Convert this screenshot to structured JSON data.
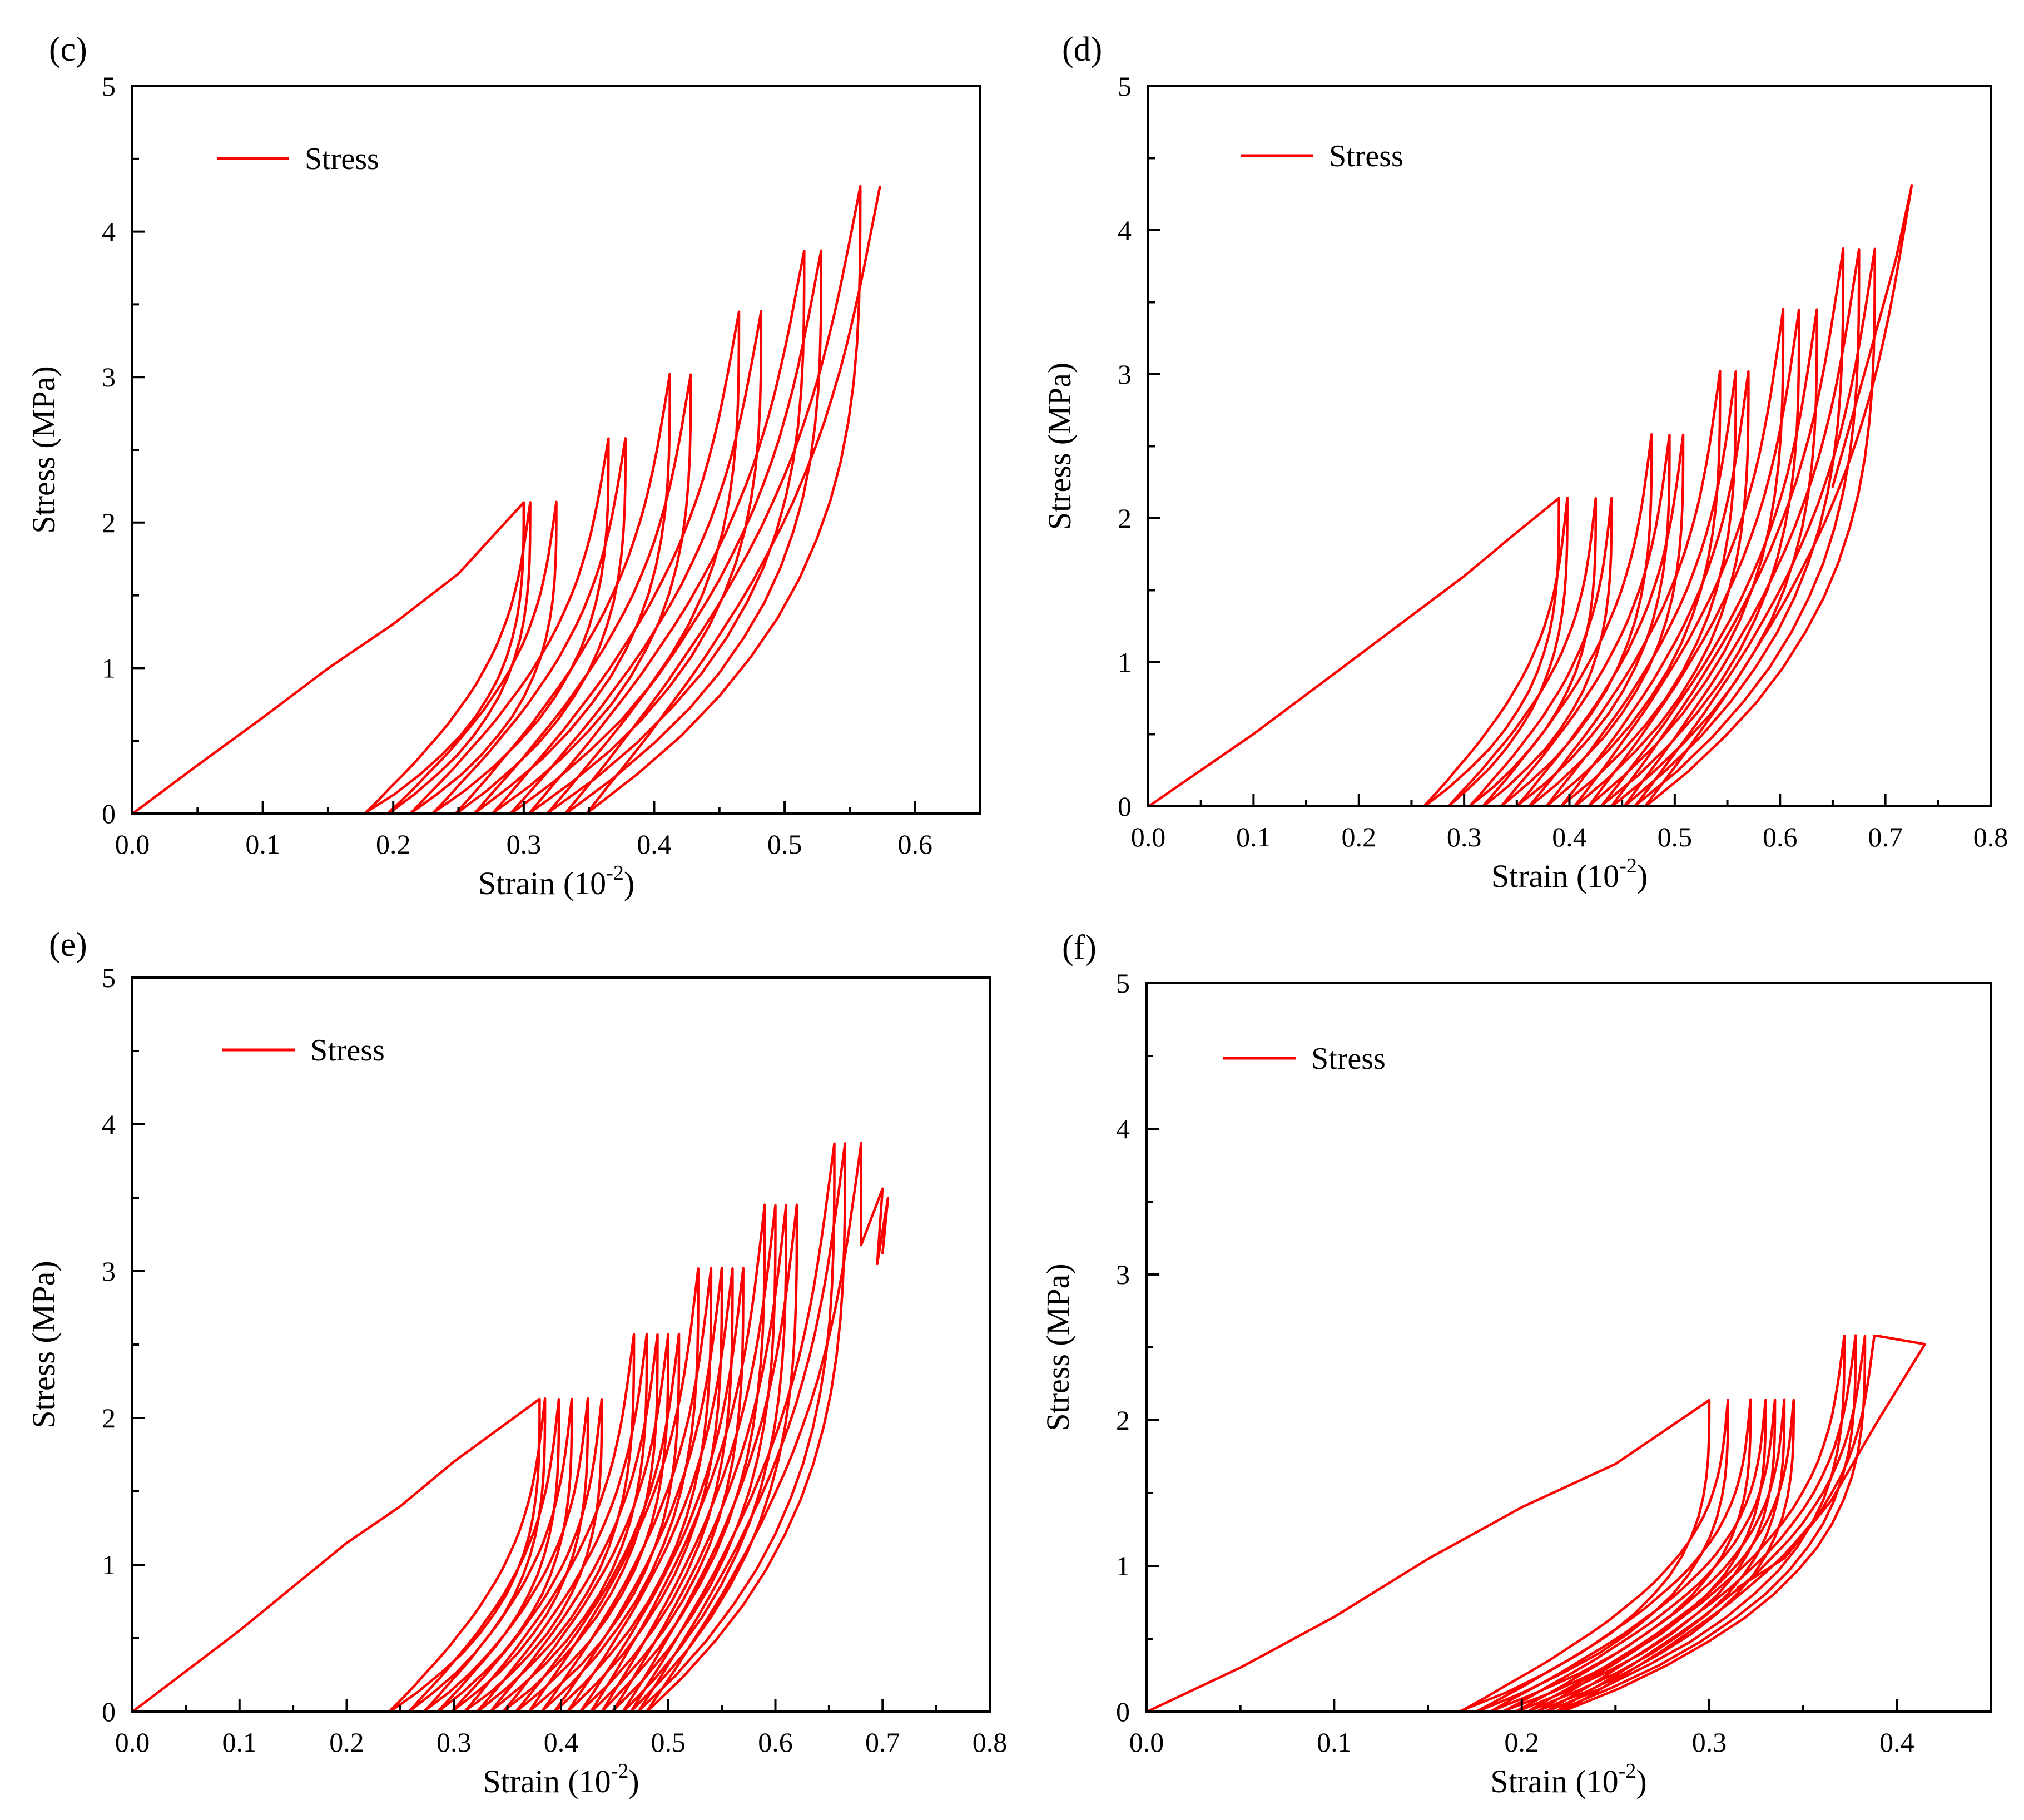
{
  "chart_data": [
    {
      "panel": "(c)",
      "type": "line",
      "xlabel": "Strain (10",
      "xlabel_exp": "-2",
      "xlabel_close": ")",
      "ylabel": "Stress (MPa)",
      "xlim": [
        0,
        0.65
      ],
      "ylim": [
        0,
        5
      ],
      "xticks": [
        "0.0",
        "0.1",
        "0.2",
        "0.3",
        "0.4",
        "0.5",
        "0.6"
      ],
      "yticks": [
        "0",
        "1",
        "2",
        "3",
        "4",
        "5"
      ],
      "legend": "Stress",
      "legend_position": "top-left",
      "series": [
        {
          "name": "Stress",
          "initial": [
            [
              0,
              0
            ],
            [
              0.05,
              0.33
            ],
            [
              0.1,
              0.66
            ],
            [
              0.15,
              1.0
            ],
            [
              0.2,
              1.3
            ],
            [
              0.25,
              1.65
            ],
            [
              0.3,
              2.14
            ]
          ],
          "cycles": [
            [
              0.178,
              0.305,
              2.14,
              0.29
            ],
            [
              0.196,
              0.325,
              2.14,
              0.29
            ],
            [
              0.213,
              0.365,
              2.58,
              0.27
            ],
            [
              0.23,
              0.378,
              2.58,
              0.27
            ],
            [
              0.248,
              0.412,
              3.02,
              0.26
            ],
            [
              0.262,
              0.428,
              3.02,
              0.26
            ],
            [
              0.276,
              0.465,
              3.45,
              0.25
            ],
            [
              0.29,
              0.482,
              3.45,
              0.25
            ],
            [
              0.304,
              0.515,
              3.87,
              0.24
            ],
            [
              0.318,
              0.528,
              3.87,
              0.24
            ],
            [
              0.332,
              0.558,
              4.31,
              0.23
            ],
            [
              0.348,
              0.573,
              4.31,
              0.23
            ]
          ]
        }
      ]
    },
    {
      "panel": "(d)",
      "type": "line",
      "xlabel": "Strain (10",
      "xlabel_exp": "-2",
      "xlabel_close": ")",
      "ylabel": "Stress (MPa)",
      "xlim": [
        0,
        0.8
      ],
      "ylim": [
        0,
        5
      ],
      "xticks": [
        "0.0",
        "0.1",
        "0.2",
        "0.3",
        "0.4",
        "0.5",
        "0.6",
        "0.7",
        "0.8"
      ],
      "yticks": [
        "0",
        "1",
        "2",
        "3",
        "4",
        "5"
      ],
      "legend": "Stress",
      "legend_position": "top-left",
      "series": [
        {
          "name": "Stress",
          "initial": [
            [
              0,
              0
            ],
            [
              0.1,
              0.5
            ],
            [
              0.2,
              1.05
            ],
            [
              0.3,
              1.6
            ],
            [
              0.35,
              1.9
            ],
            [
              0.39,
              2.14
            ]
          ],
          "cycles": [
            [
              0.262,
              0.398,
              2.14,
              0.3
            ],
            [
              0.285,
              0.425,
              2.14,
              0.3
            ],
            [
              0.305,
              0.44,
              2.14,
              0.3
            ],
            [
              0.318,
              0.478,
              2.58,
              0.28
            ],
            [
              0.335,
              0.495,
              2.58,
              0.28
            ],
            [
              0.35,
              0.508,
              2.58,
              0.28
            ],
            [
              0.362,
              0.543,
              3.02,
              0.27
            ],
            [
              0.378,
              0.558,
              3.02,
              0.27
            ],
            [
              0.392,
              0.57,
              3.02,
              0.27
            ],
            [
              0.405,
              0.603,
              3.45,
              0.26
            ],
            [
              0.418,
              0.618,
              3.45,
              0.26
            ],
            [
              0.43,
              0.635,
              3.45,
              0.26
            ],
            [
              0.44,
              0.66,
              3.87,
              0.25
            ],
            [
              0.452,
              0.675,
              3.87,
              0.25
            ],
            [
              0.462,
              0.69,
              3.87,
              0.25
            ],
            [
              0.472,
              0.725,
              4.31,
              0.24
            ]
          ],
          "tail": [
            [
              0.725,
              4.31
            ],
            [
              0.71,
              3.8
            ],
            [
              0.68,
              3.0
            ],
            [
              0.65,
              2.22
            ]
          ]
        }
      ]
    },
    {
      "panel": "(e)",
      "type": "line",
      "xlabel": "Strain (10",
      "xlabel_exp": "-2",
      "xlabel_close": ")",
      "ylabel": "Stress (MPa)",
      "xlim": [
        0,
        0.8
      ],
      "ylim": [
        0,
        5
      ],
      "xticks": [
        "0.0",
        "0.1",
        "0.2",
        "0.3",
        "0.4",
        "0.5",
        "0.6",
        "0.7",
        "0.8"
      ],
      "yticks": [
        "0",
        "1",
        "2",
        "3",
        "4",
        "5"
      ],
      "legend": "Stress",
      "legend_position": "top-left",
      "series": [
        {
          "name": "Stress",
          "initial": [
            [
              0,
              0
            ],
            [
              0.1,
              0.55
            ],
            [
              0.2,
              1.15
            ],
            [
              0.25,
              1.4
            ],
            [
              0.3,
              1.7
            ],
            [
              0.38,
              2.13
            ]
          ],
          "cycles": [
            [
              0.24,
              0.385,
              2.13,
              0.3
            ],
            [
              0.258,
              0.398,
              2.13,
              0.3
            ],
            [
              0.272,
              0.41,
              2.13,
              0.3
            ],
            [
              0.285,
              0.425,
              2.13,
              0.3
            ],
            [
              0.298,
              0.438,
              2.13,
              0.3
            ],
            [
              0.31,
              0.468,
              2.57,
              0.28
            ],
            [
              0.322,
              0.48,
              2.57,
              0.28
            ],
            [
              0.334,
              0.49,
              2.57,
              0.28
            ],
            [
              0.346,
              0.5,
              2.57,
              0.28
            ],
            [
              0.358,
              0.51,
              2.57,
              0.28
            ],
            [
              0.37,
              0.528,
              3.02,
              0.27
            ],
            [
              0.382,
              0.54,
              3.02,
              0.27
            ],
            [
              0.394,
              0.55,
              3.02,
              0.27
            ],
            [
              0.406,
              0.56,
              3.02,
              0.27
            ],
            [
              0.418,
              0.57,
              3.02,
              0.27
            ],
            [
              0.428,
              0.59,
              3.45,
              0.26
            ],
            [
              0.438,
              0.6,
              3.45,
              0.26
            ],
            [
              0.448,
              0.61,
              3.45,
              0.26
            ],
            [
              0.458,
              0.62,
              3.45,
              0.26
            ],
            [
              0.465,
              0.655,
              3.87,
              0.25
            ],
            [
              0.472,
              0.665,
              3.87,
              0.25
            ],
            [
              0.48,
              0.68,
              3.87,
              0.25
            ]
          ],
          "tail": [
            [
              0.68,
              3.87
            ],
            [
              0.68,
              3.18
            ],
            [
              0.7,
              3.56
            ],
            [
              0.695,
              3.05
            ],
            [
              0.705,
              3.5
            ],
            [
              0.7,
              3.12
            ]
          ]
        }
      ]
    },
    {
      "panel": "(f)",
      "type": "line",
      "xlabel": "Strain (10",
      "xlabel_exp": "-2",
      "xlabel_close": ")",
      "ylabel": "Stress (MPa)",
      "xlim": [
        0,
        0.45
      ],
      "ylim": [
        0,
        5
      ],
      "xticks": [
        "0.0",
        "0.1",
        "0.2",
        "0.3",
        "0.4"
      ],
      "yticks": [
        "0",
        "1",
        "2",
        "3",
        "4",
        "5"
      ],
      "legend": "Stress",
      "legend_position": "top-left",
      "series": [
        {
          "name": "Stress",
          "initial": [
            [
              0,
              0
            ],
            [
              0.05,
              0.3
            ],
            [
              0.1,
              0.65
            ],
            [
              0.15,
              1.05
            ],
            [
              0.2,
              1.4
            ],
            [
              0.25,
              1.7
            ],
            [
              0.3,
              2.14
            ]
          ],
          "cycles": [
            [
              0.167,
              0.31,
              2.14,
              0.35
            ],
            [
              0.176,
              0.322,
              2.14,
              0.35
            ],
            [
              0.183,
              0.33,
              2.14,
              0.35
            ],
            [
              0.19,
              0.335,
              2.14,
              0.35
            ],
            [
              0.197,
              0.34,
              2.14,
              0.35
            ],
            [
              0.203,
              0.345,
              2.14,
              0.35
            ],
            [
              0.208,
              0.372,
              2.58,
              0.33
            ],
            [
              0.213,
              0.378,
              2.58,
              0.33
            ],
            [
              0.218,
              0.383,
              2.58,
              0.33
            ],
            [
              0.222,
              0.388,
              2.58,
              0.33
            ]
          ],
          "tail": [
            [
              0.39,
              2.58
            ],
            [
              0.415,
              2.52
            ],
            [
              0.39,
              2.0
            ],
            [
              0.365,
              1.45
            ],
            [
              0.34,
              1.05
            ],
            [
              0.315,
              0.85
            ]
          ]
        }
      ]
    }
  ]
}
